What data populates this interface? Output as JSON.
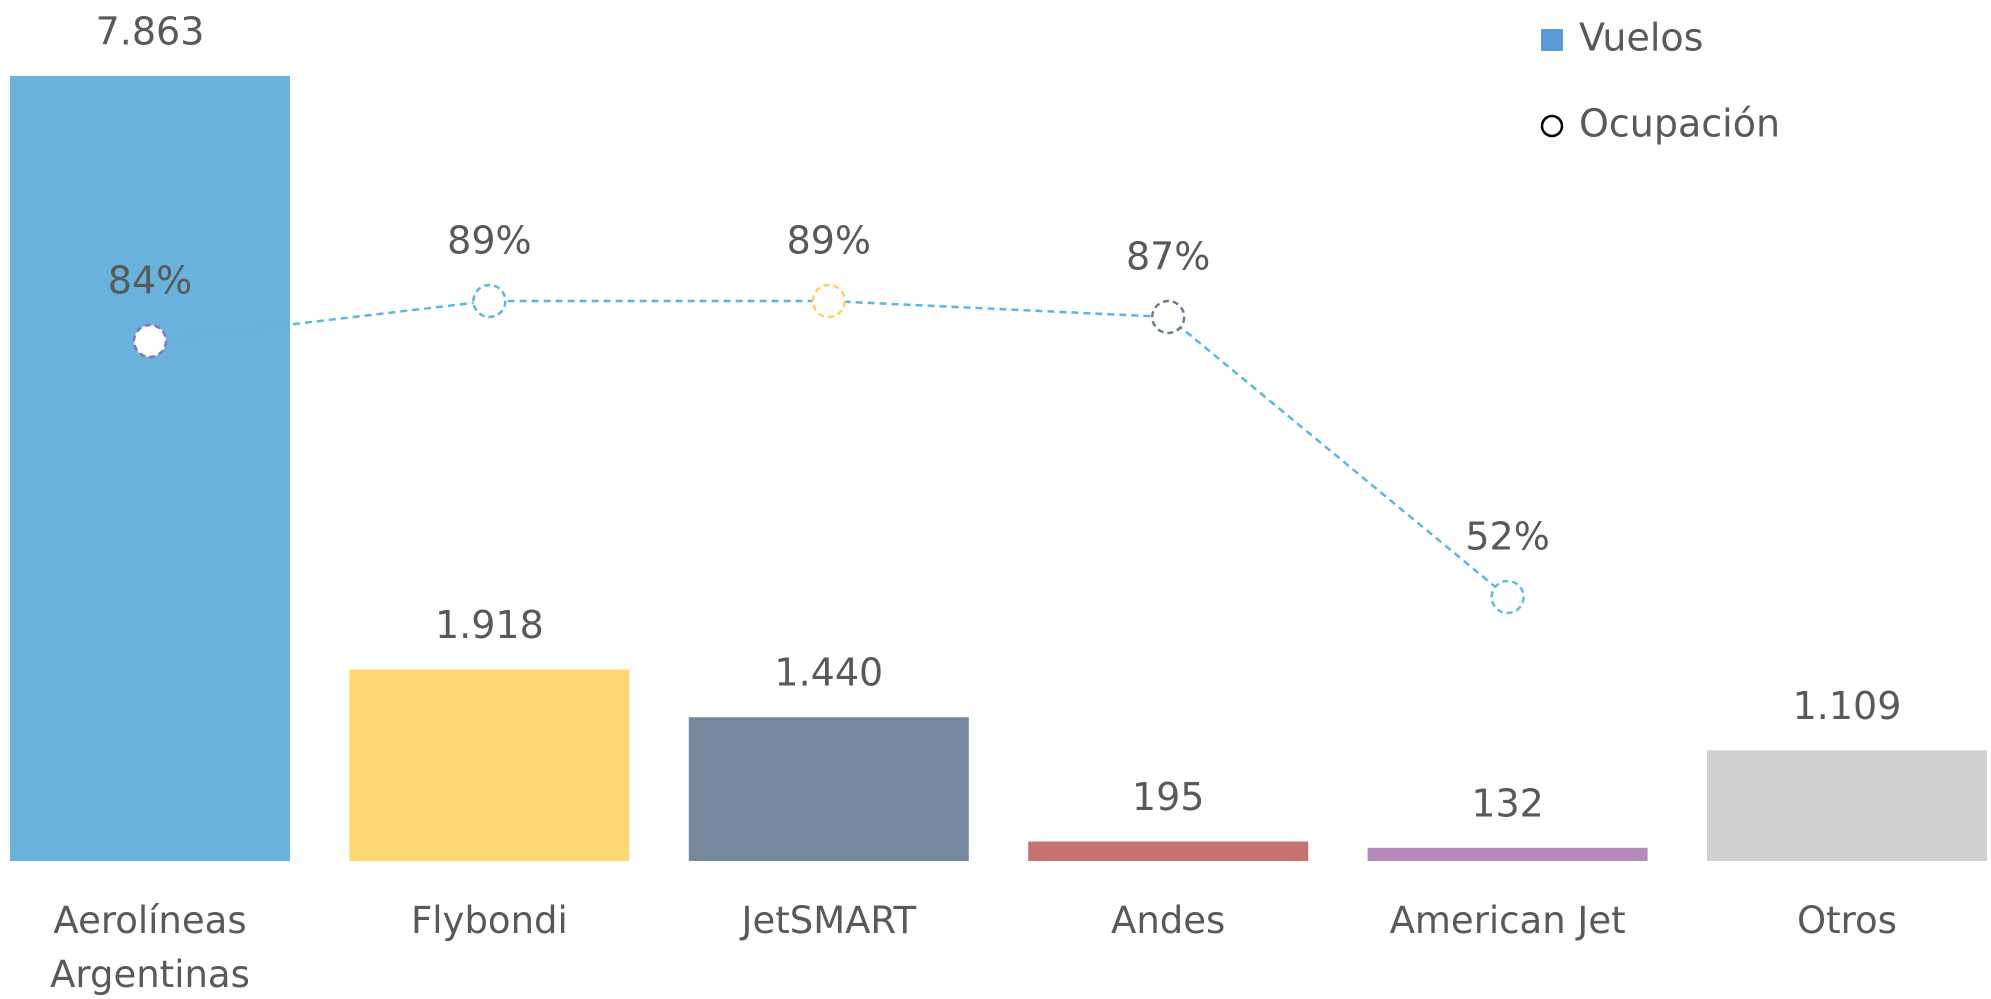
{
  "chart_data": {
    "type": "bar",
    "categories": [
      "Aerolíneas Argentinas",
      "Flybondi",
      "JetSMART",
      "Andes",
      "American Jet",
      "Otros"
    ],
    "series": [
      {
        "name": "Vuelos",
        "type": "bar",
        "color": "#5b9bd5",
        "colors": [
          "#6ab2de",
          "#fdd873",
          "#76879e",
          "#c5736f",
          "#b48bb8",
          "#d0d0d0"
        ],
        "values": [
          7863,
          1918,
          1440,
          195,
          132,
          1109
        ],
        "value_labels": [
          "7.863",
          "1.918",
          "1.440",
          "195",
          "132",
          "1.109"
        ]
      },
      {
        "name": "Ocupación",
        "type": "line",
        "axis": "y2",
        "color": "#5bb7e0",
        "marker_colors": [
          "#8a6fb5",
          "#5bb7e0",
          "#fdd060",
          "#6a7a90",
          "#5bc0e0",
          null
        ],
        "values": [
          84,
          89,
          89,
          87,
          52,
          null
        ],
        "value_labels": [
          "84%",
          "89%",
          "89%",
          "87%",
          "52%",
          null
        ]
      }
    ],
    "legend": "top-right"
  }
}
